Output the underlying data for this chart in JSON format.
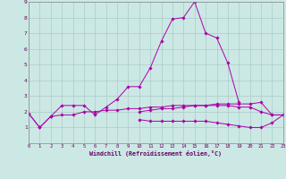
{
  "xlabel": "Windchill (Refroidissement éolien,°C)",
  "background_color": "#cce8e4",
  "grid_color": "#aaccca",
  "line_color": "#aa00aa",
  "x_values": [
    0,
    1,
    2,
    3,
    4,
    5,
    6,
    7,
    8,
    9,
    10,
    11,
    12,
    13,
    14,
    15,
    16,
    17,
    18,
    19,
    20,
    21,
    22,
    23
  ],
  "series1": [
    1.9,
    1.0,
    1.7,
    2.4,
    2.4,
    2.4,
    1.8,
    2.3,
    2.8,
    3.6,
    3.6,
    4.8,
    6.5,
    7.9,
    8.0,
    9.0,
    7.0,
    6.7,
    5.1,
    2.6,
    null,
    null,
    null,
    null
  ],
  "series3": [
    1.9,
    1.0,
    1.7,
    1.8,
    1.8,
    2.0,
    2.0,
    2.1,
    2.1,
    2.2,
    2.2,
    2.3,
    2.3,
    2.4,
    2.4,
    2.4,
    2.4,
    2.4,
    2.4,
    2.3,
    2.3,
    2.0,
    1.8,
    1.8
  ],
  "series4": [
    null,
    null,
    null,
    null,
    null,
    null,
    null,
    null,
    null,
    null,
    1.5,
    1.4,
    1.4,
    1.4,
    1.4,
    1.4,
    1.4,
    1.3,
    1.2,
    1.1,
    1.0,
    1.0,
    1.3,
    1.8
  ],
  "series5": [
    null,
    null,
    null,
    null,
    null,
    null,
    null,
    null,
    null,
    null,
    2.0,
    2.1,
    2.2,
    2.2,
    2.3,
    2.4,
    2.4,
    2.5,
    2.5,
    2.5,
    2.5,
    2.6,
    1.8,
    1.8
  ],
  "ylim": [
    0,
    9
  ],
  "xlim": [
    0,
    23
  ],
  "yticks": [
    1,
    2,
    3,
    4,
    5,
    6,
    7,
    8,
    9
  ],
  "xticks": [
    0,
    1,
    2,
    3,
    4,
    5,
    6,
    7,
    8,
    9,
    10,
    11,
    12,
    13,
    14,
    15,
    16,
    17,
    18,
    19,
    20,
    21,
    22,
    23
  ]
}
